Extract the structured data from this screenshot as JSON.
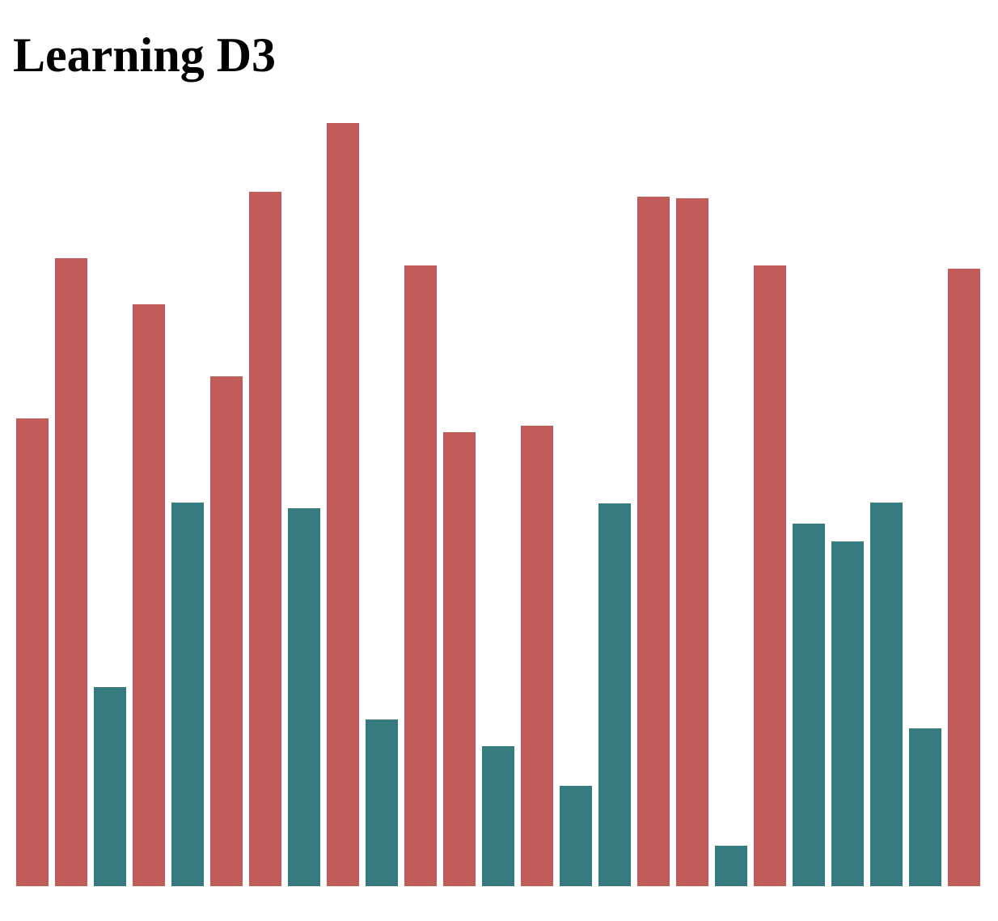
{
  "page": {
    "title": "Learning D3"
  },
  "chart_data": {
    "type": "bar",
    "title": "",
    "xlabel": "",
    "ylabel": "",
    "values": [
      578,
      776,
      246,
      719,
      474,
      630,
      858,
      467,
      943,
      206,
      767,
      561,
      173,
      569,
      124,
      473,
      852,
      850,
      50,
      767,
      448,
      426,
      474,
      195,
      763
    ],
    "ylim": [
      0,
      1000
    ],
    "threshold": 500,
    "colors": {
      "above": "#c05c5a",
      "below": "#377d80"
    },
    "grid": false,
    "legend": "none"
  }
}
